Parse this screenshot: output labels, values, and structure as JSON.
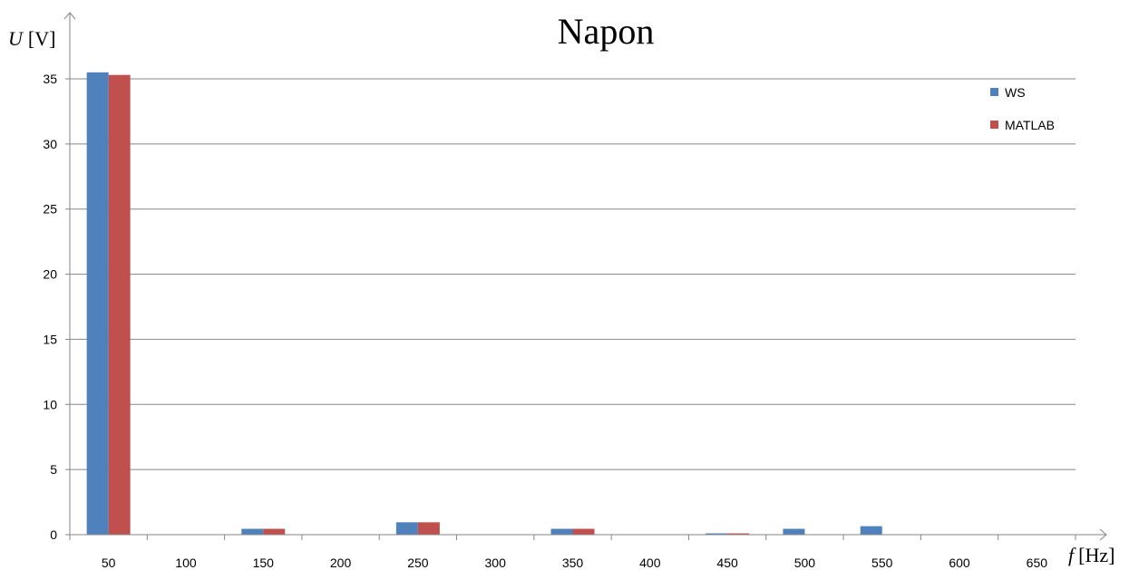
{
  "chart_data": {
    "type": "bar",
    "title": "Napon",
    "ylabel_symbol": "U",
    "ylabel_unit": "[V]",
    "xlabel_symbol": "f",
    "xlabel_unit": "[Hz]",
    "categories": [
      "50",
      "100",
      "150",
      "200",
      "250",
      "300",
      "350",
      "400",
      "450",
      "500",
      "550",
      "600",
      "650"
    ],
    "series": [
      {
        "name": "WS",
        "color": "#4f81bd",
        "values": [
          35.5,
          0,
          0.45,
          0,
          0.95,
          0,
          0.45,
          0,
          0.1,
          0.45,
          0.65,
          0,
          0
        ]
      },
      {
        "name": "MATLAB",
        "color": "#c0504d",
        "values": [
          35.3,
          0,
          0.45,
          0,
          0.95,
          0,
          0.45,
          0,
          0.1,
          0,
          0,
          0,
          0
        ]
      }
    ],
    "yticks": [
      0,
      5,
      10,
      15,
      20,
      25,
      30,
      35
    ],
    "ylim": [
      0,
      35
    ],
    "grid": true,
    "legend_position": "top-right"
  }
}
